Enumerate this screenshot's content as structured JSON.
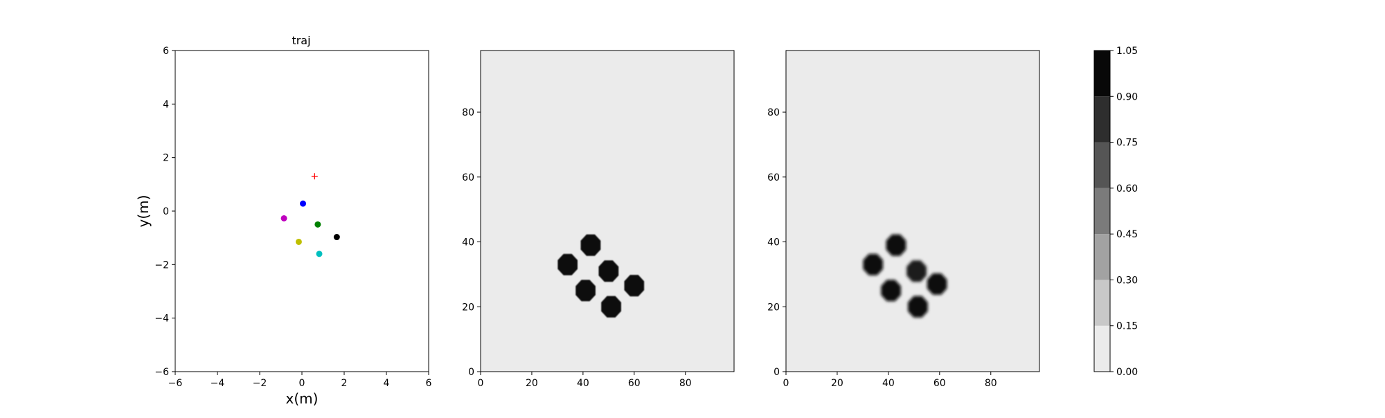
{
  "chart_data": [
    {
      "type": "scatter",
      "title": "traj",
      "xlabel": "x(m)",
      "ylabel": "y(m)",
      "xlim": [
        -6,
        6
      ],
      "ylim": [
        -6,
        6
      ],
      "xticks": [
        -6,
        -4,
        -2,
        0,
        2,
        4,
        6
      ],
      "yticks": [
        -6,
        -4,
        -2,
        0,
        2,
        4,
        6
      ],
      "grid": false,
      "points": [
        {
          "x": 0.05,
          "y": 0.28,
          "color": "#0000ff",
          "marker": "circle"
        },
        {
          "x": -0.85,
          "y": -0.27,
          "color": "#bf00bf",
          "marker": "circle"
        },
        {
          "x": 0.75,
          "y": -0.5,
          "color": "#008000",
          "marker": "circle"
        },
        {
          "x": 1.65,
          "y": -0.97,
          "color": "#000000",
          "marker": "circle"
        },
        {
          "x": -0.15,
          "y": -1.15,
          "color": "#bfbf00",
          "marker": "circle"
        },
        {
          "x": 0.82,
          "y": -1.6,
          "color": "#00bfbf",
          "marker": "circle"
        }
      ],
      "target": {
        "x": 0.6,
        "y": 1.3,
        "color": "#ff0000",
        "marker": "plus"
      }
    },
    {
      "type": "heatmap",
      "xlim": [
        0,
        99
      ],
      "ylim": [
        0,
        99
      ],
      "xticks": [
        0,
        20,
        40,
        60,
        80
      ],
      "yticks": [
        0,
        20,
        40,
        60,
        80
      ],
      "background_value": 0.0,
      "blobs": [
        {
          "x": 43,
          "y": 39,
          "value": 1.0,
          "blur": 0.3
        },
        {
          "x": 34,
          "y": 33,
          "value": 1.0,
          "blur": 0.3
        },
        {
          "x": 50,
          "y": 31,
          "value": 1.0,
          "blur": 0.3
        },
        {
          "x": 60,
          "y": 26.5,
          "value": 1.0,
          "blur": 0.3
        },
        {
          "x": 41,
          "y": 25,
          "value": 1.0,
          "blur": 0.3
        },
        {
          "x": 51,
          "y": 20,
          "value": 1.0,
          "blur": 0.3
        }
      ]
    },
    {
      "type": "heatmap",
      "xlim": [
        0,
        99
      ],
      "ylim": [
        0,
        99
      ],
      "xticks": [
        0,
        20,
        40,
        60,
        80
      ],
      "yticks": [
        0,
        20,
        40,
        60,
        80
      ],
      "background_value": 0.0,
      "blobs": [
        {
          "x": 43,
          "y": 39,
          "value": 1.0,
          "blur": 0.6
        },
        {
          "x": 34,
          "y": 33,
          "value": 1.0,
          "blur": 0.6
        },
        {
          "x": 51,
          "y": 31,
          "value": 0.9,
          "blur": 1.0
        },
        {
          "x": 59,
          "y": 27,
          "value": 1.0,
          "blur": 0.7
        },
        {
          "x": 41,
          "y": 25,
          "value": 1.0,
          "blur": 0.6
        },
        {
          "x": 51.5,
          "y": 20,
          "value": 1.0,
          "blur": 0.6
        }
      ]
    },
    {
      "type": "colorbar",
      "levels": [
        0.0,
        0.15,
        0.3,
        0.45,
        0.6,
        0.75,
        0.9,
        1.05
      ],
      "tick_labels": [
        "0.00",
        "0.15",
        "0.30",
        "0.45",
        "0.60",
        "0.75",
        "0.90",
        "1.05"
      ],
      "colors": [
        "#ebebeb",
        "#c8c8c8",
        "#a2a2a2",
        "#7b7b7b",
        "#555555",
        "#2e2e2e",
        "#080808"
      ]
    }
  ]
}
